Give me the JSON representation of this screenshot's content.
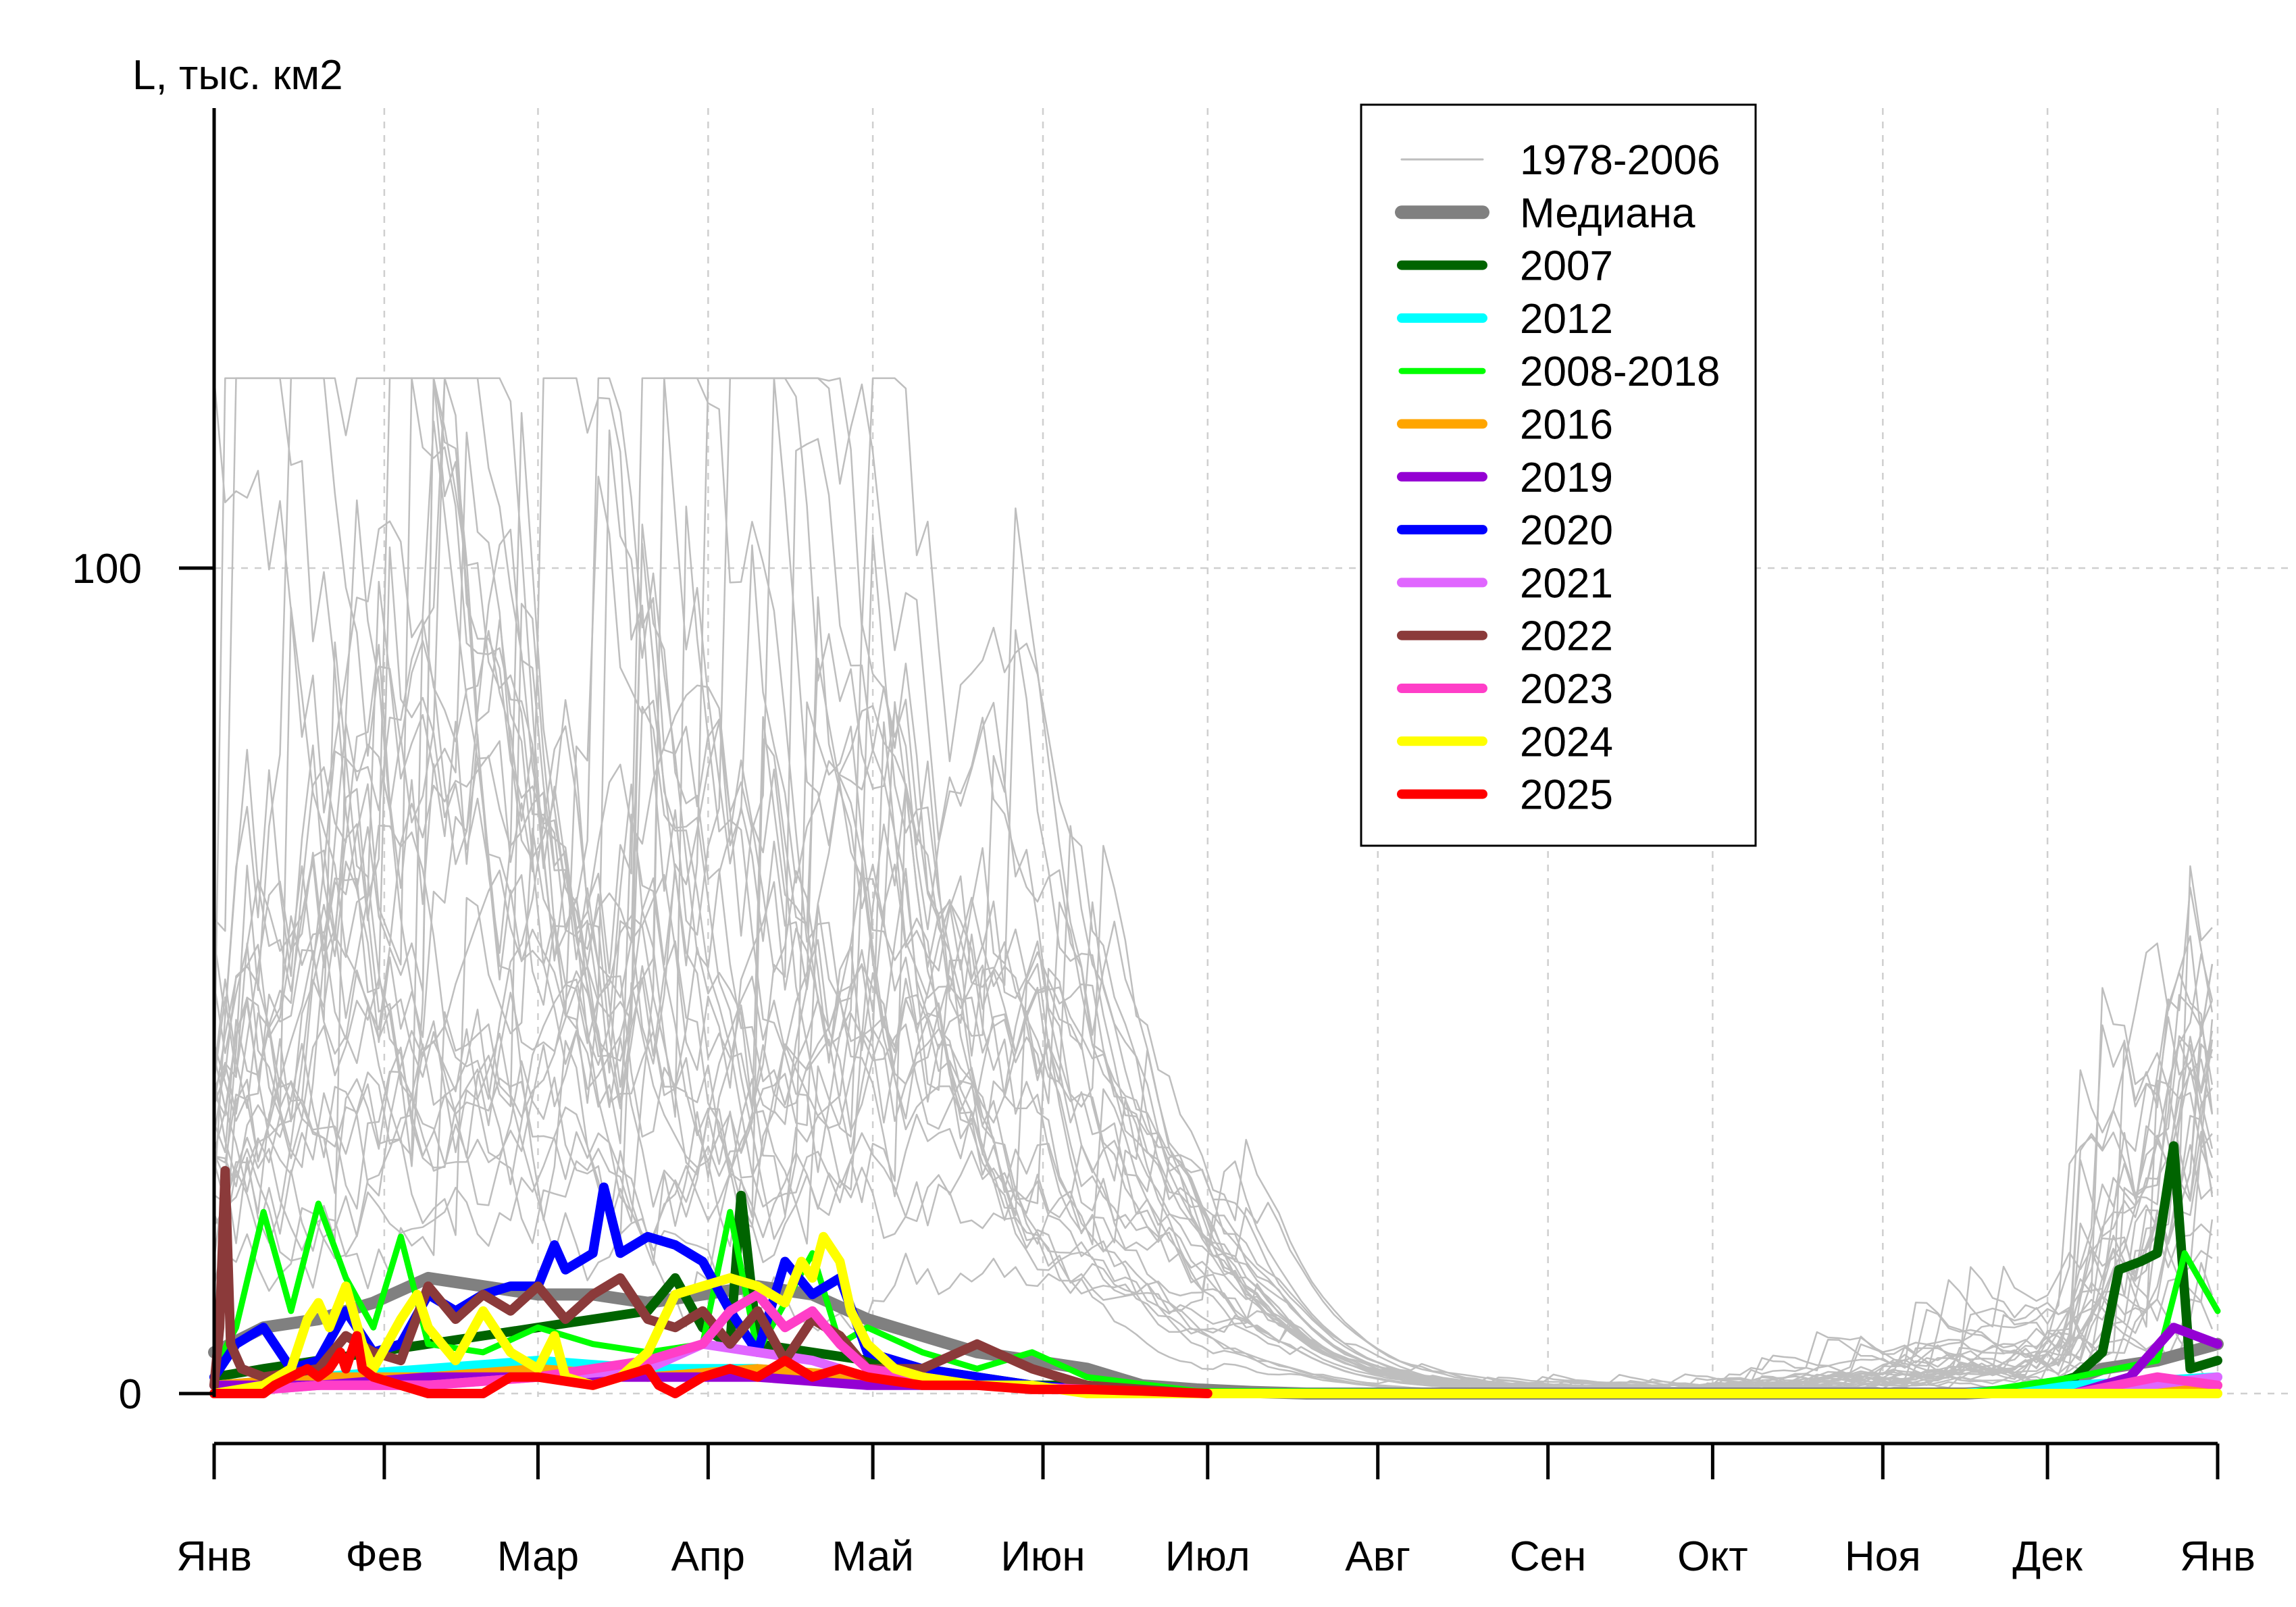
{
  "chart_data": {
    "type": "line",
    "ylabel": "L, тыс. км2",
    "xlabel": "",
    "title": "",
    "x_ticks": [
      "Янв",
      "Фев",
      "Мар",
      "Апр",
      "Май",
      "Июн",
      "Июл",
      "Авг",
      "Сен",
      "Окт",
      "Ноя",
      "Дек",
      "Янв"
    ],
    "x_tick_days": [
      1,
      32,
      60,
      91,
      121,
      152,
      182,
      213,
      244,
      274,
      305,
      335,
      366
    ],
    "xlim": [
      1,
      366
    ],
    "ylim": [
      0,
      125
    ],
    "y_ticks": [
      0,
      100
    ],
    "grid": true,
    "legend_position": "top-right",
    "legend": [
      {
        "label": "1978-2006",
        "color": "#bebebe",
        "style": "thin"
      },
      {
        "label": "Медиана",
        "color": "#808080",
        "style": "thick"
      },
      {
        "label": "2007",
        "color": "#006400",
        "style": "thick"
      },
      {
        "label": "2012",
        "color": "#00ffff",
        "style": "thick"
      },
      {
        "label": "2008-2018",
        "color": "#00ff00",
        "style": "medium"
      },
      {
        "label": "2016",
        "color": "#ffa500",
        "style": "thick"
      },
      {
        "label": "2019",
        "color": "#9400d3",
        "style": "thick"
      },
      {
        "label": "2020",
        "color": "#0000ff",
        "style": "thick"
      },
      {
        "label": "2021",
        "color": "#e066ff",
        "style": "thick"
      },
      {
        "label": "2022",
        "color": "#8b3a3a",
        "style": "thick"
      },
      {
        "label": "2023",
        "color": "#ff3ec8",
        "style": "thick"
      },
      {
        "label": "2024",
        "color": "#ffff00",
        "style": "thick"
      },
      {
        "label": "2025",
        "color": "#ff0000",
        "style": "thick"
      }
    ],
    "series": [
      {
        "name": "Медиана",
        "color": "#808080",
        "width": 18,
        "x": [
          1,
          10,
          20,
          30,
          40,
          50,
          60,
          70,
          80,
          90,
          100,
          110,
          120,
          130,
          140,
          150,
          160,
          170,
          180,
          190,
          200,
          240,
          280,
          320,
          335,
          345,
          355,
          366
        ],
        "y": [
          5,
          8,
          9,
          11,
          14,
          13,
          12,
          12,
          11,
          12,
          13,
          12,
          9,
          7,
          5,
          4,
          3,
          1,
          0.5,
          0.2,
          0,
          0,
          0,
          0,
          0.5,
          3,
          4,
          6
        ]
      },
      {
        "name": "2007",
        "color": "#006400",
        "width": 14,
        "x": [
          1,
          10,
          20,
          30,
          40,
          50,
          60,
          70,
          80,
          85,
          90,
          95,
          97,
          100,
          110,
          120,
          130,
          140,
          150,
          160,
          180,
          330,
          335,
          340,
          345,
          348,
          352,
          355,
          358,
          361,
          366
        ],
        "y": [
          2,
          3,
          4,
          5,
          6,
          7,
          8,
          9,
          10,
          14,
          8,
          6,
          24,
          6,
          5,
          4,
          3,
          2,
          1,
          1,
          0,
          0,
          1,
          2,
          5,
          15,
          16,
          17,
          30,
          3,
          4
        ]
      },
      {
        "name": "2012",
        "color": "#00ffff",
        "width": 14,
        "x": [
          1,
          20,
          40,
          60,
          80,
          100,
          120,
          140,
          160,
          180,
          320,
          340,
          366
        ],
        "y": [
          1,
          2,
          3,
          4,
          3,
          3,
          2,
          1,
          0.5,
          0,
          0,
          1,
          2
        ]
      },
      {
        "name": "2008-2018",
        "color": "#00ff00",
        "width": 9,
        "x": [
          1,
          5,
          10,
          15,
          20,
          25,
          30,
          35,
          40,
          50,
          60,
          70,
          80,
          90,
          95,
          100,
          110,
          115,
          120,
          130,
          140,
          150,
          160,
          180,
          320,
          340,
          355,
          360,
          366
        ],
        "y": [
          3,
          8,
          22,
          10,
          23,
          14,
          8,
          19,
          6,
          5,
          8,
          6,
          5,
          6,
          22,
          5,
          17,
          6,
          8,
          5,
          3,
          5,
          2,
          0.3,
          0,
          2,
          4,
          17,
          10
        ]
      },
      {
        "name": "2016",
        "color": "#ffa500",
        "width": 14,
        "x": [
          1,
          20,
          40,
          60,
          80,
          100,
          120,
          140,
          160,
          180,
          340,
          366
        ],
        "y": [
          1,
          2,
          2,
          3,
          2,
          3,
          2,
          1,
          0.5,
          0,
          0,
          1
        ]
      },
      {
        "name": "2019",
        "color": "#9400d3",
        "width": 14,
        "x": [
          1,
          20,
          40,
          60,
          80,
          100,
          120,
          140,
          160,
          180,
          340,
          350,
          358,
          366
        ],
        "y": [
          1,
          1,
          2,
          2,
          2,
          2,
          1,
          1,
          0.5,
          0,
          0,
          2,
          8,
          6
        ]
      },
      {
        "name": "2020",
        "color": "#0000ff",
        "width": 14,
        "x": [
          1,
          5,
          10,
          15,
          20,
          25,
          30,
          35,
          40,
          45,
          50,
          55,
          60,
          63,
          65,
          70,
          72,
          75,
          80,
          85,
          90,
          95,
          100,
          105,
          110,
          115,
          120,
          130,
          140,
          150,
          160,
          180
        ],
        "y": [
          2,
          6,
          8,
          3,
          4,
          10,
          5,
          6,
          12,
          10,
          12,
          13,
          13,
          18,
          15,
          17,
          25,
          17,
          19,
          18,
          16,
          10,
          5,
          16,
          12,
          14,
          5,
          3,
          2,
          1,
          0.5,
          0
        ]
      },
      {
        "name": "2021",
        "color": "#e066ff",
        "width": 14,
        "x": [
          1,
          20,
          40,
          60,
          80,
          90,
          100,
          110,
          120,
          140,
          160,
          180,
          340,
          366
        ],
        "y": [
          0,
          1,
          1,
          2,
          3,
          6,
          5,
          4,
          2,
          1,
          0.5,
          0,
          0,
          2
        ]
      },
      {
        "name": "2022",
        "color": "#8b3a3a",
        "width": 14,
        "x": [
          1,
          2,
          3,
          4,
          6,
          10,
          20,
          25,
          30,
          35,
          40,
          45,
          50,
          55,
          60,
          65,
          70,
          75,
          80,
          85,
          90,
          95,
          100,
          105,
          110,
          115,
          120,
          130,
          140,
          150,
          160,
          180
        ],
        "y": [
          1,
          8,
          27,
          6,
          3,
          2,
          3,
          7,
          5,
          4,
          13,
          9,
          12,
          10,
          13,
          9,
          12,
          14,
          9,
          8,
          10,
          6,
          10,
          4,
          9,
          7,
          3,
          3,
          6,
          3,
          1,
          0
        ]
      },
      {
        "name": "2023",
        "color": "#ff3ec8",
        "width": 14,
        "x": [
          1,
          20,
          40,
          60,
          70,
          80,
          90,
          95,
          100,
          105,
          110,
          115,
          120,
          130,
          140,
          160,
          180,
          260,
          300,
          340,
          355,
          366
        ],
        "y": [
          0,
          1,
          1,
          2,
          3,
          4,
          6,
          10,
          12,
          8,
          10,
          6,
          3,
          2,
          1,
          0.5,
          0,
          0,
          0,
          0,
          2,
          1
        ]
      },
      {
        "name": "2024",
        "color": "#ffff00",
        "width": 14,
        "x": [
          1,
          10,
          15,
          18,
          20,
          22,
          25,
          28,
          30,
          35,
          38,
          40,
          45,
          50,
          55,
          60,
          63,
          65,
          70,
          75,
          80,
          85,
          90,
          95,
          100,
          105,
          108,
          110,
          112,
          115,
          117,
          120,
          125,
          130,
          140,
          150,
          160,
          200,
          366
        ],
        "y": [
          0,
          1,
          3,
          9,
          11,
          8,
          13,
          6,
          3,
          9,
          12,
          8,
          4,
          10,
          5,
          3,
          7,
          2,
          1,
          2,
          5,
          12,
          13,
          14,
          13,
          11,
          16,
          14,
          19,
          16,
          10,
          6,
          3,
          2,
          1,
          1,
          0,
          0,
          0
        ]
      },
      {
        "name": "2025",
        "color": "#ff0000",
        "width": 14,
        "x": [
          1,
          10,
          12,
          15,
          18,
          20,
          22,
          24,
          25,
          27,
          28,
          30,
          40,
          50,
          55,
          60,
          70,
          80,
          82,
          85,
          90,
          95,
          100,
          105,
          110,
          115,
          120,
          130,
          140,
          150,
          160,
          170,
          182
        ],
        "y": [
          0,
          0,
          1,
          2,
          3,
          2,
          3,
          5,
          3,
          7,
          3,
          2,
          0,
          0,
          2,
          2,
          1,
          3,
          1,
          0,
          2,
          3,
          2,
          4,
          2,
          3,
          2,
          1,
          1,
          0.5,
          0.5,
          0.3,
          0
        ]
      }
    ]
  }
}
